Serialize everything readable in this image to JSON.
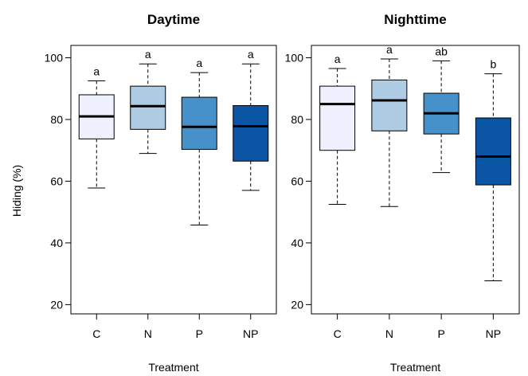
{
  "chart_data": [
    {
      "type": "box",
      "title": "Daytime",
      "ylabel": "Hiding (%)",
      "xlabel": "Treatment",
      "ylim": [
        17,
        104
      ],
      "yticks": [
        20,
        40,
        60,
        80,
        100
      ],
      "categories": [
        "C",
        "N",
        "P",
        "NP"
      ],
      "colors": [
        "#eef0fd",
        "#aecbe4",
        "#4691c9",
        "#0a56a4"
      ],
      "boxes": [
        {
          "min": 57.8,
          "q1": 73.7,
          "median": 81.0,
          "q3": 88.0,
          "max": 92.5,
          "letter": "a"
        },
        {
          "min": 69.0,
          "q1": 76.8,
          "median": 84.3,
          "q3": 90.8,
          "max": 98.0,
          "letter": "a"
        },
        {
          "min": 45.8,
          "q1": 70.3,
          "median": 77.6,
          "q3": 87.2,
          "max": 95.2,
          "letter": "a"
        },
        {
          "min": 57.0,
          "q1": 66.5,
          "median": 77.8,
          "q3": 84.5,
          "max": 98.0,
          "letter": "a"
        }
      ]
    },
    {
      "type": "box",
      "title": "Nighttime",
      "ylabel": "",
      "xlabel": "Treatment",
      "ylim": [
        17,
        104
      ],
      "yticks": [
        20,
        40,
        60,
        80,
        100
      ],
      "categories": [
        "C",
        "N",
        "P",
        "NP"
      ],
      "colors": [
        "#eef0fd",
        "#aecbe4",
        "#4691c9",
        "#0a56a4"
      ],
      "boxes": [
        {
          "min": 52.5,
          "q1": 70.0,
          "median": 85.0,
          "q3": 90.8,
          "max": 96.5,
          "letter": "a"
        },
        {
          "min": 51.8,
          "q1": 76.3,
          "median": 86.2,
          "q3": 92.8,
          "max": 99.6,
          "letter": "a"
        },
        {
          "min": 62.8,
          "q1": 75.3,
          "median": 82.0,
          "q3": 88.5,
          "max": 99.0,
          "letter": "ab"
        },
        {
          "min": 27.7,
          "q1": 58.8,
          "median": 68.0,
          "q3": 80.5,
          "max": 94.8,
          "letter": "b"
        }
      ]
    }
  ]
}
